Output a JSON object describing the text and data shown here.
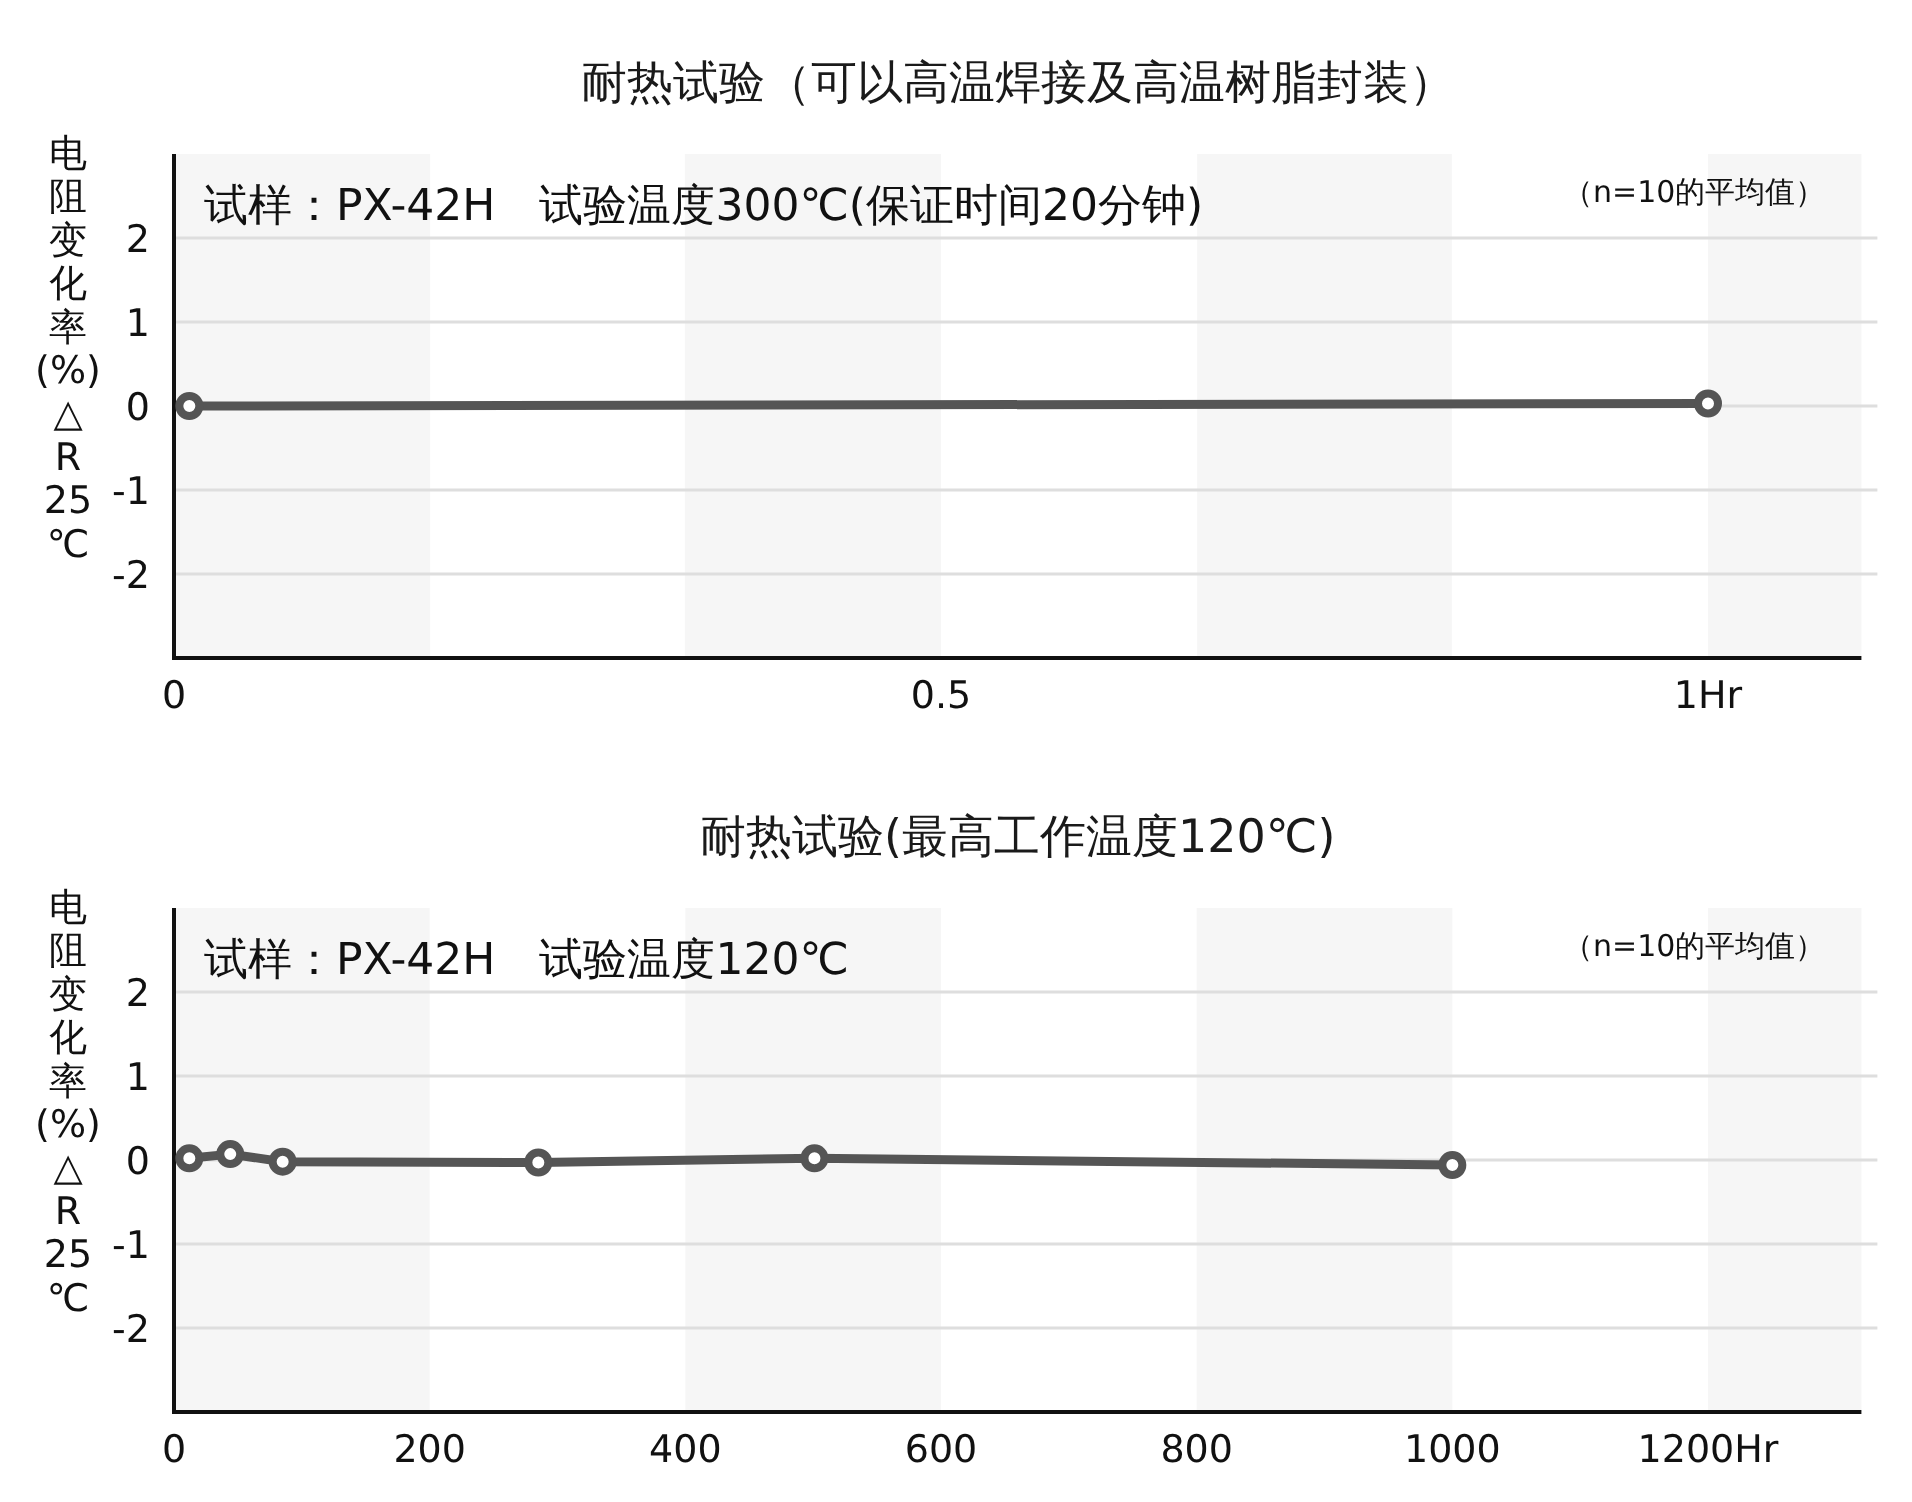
{
  "chart_data": [
    {
      "type": "line",
      "title": "耐热试验（可以高温焊接及高温树脂封装）",
      "ylabel": "电阻变化率(%)△R25℃",
      "annotations": [
        "试样：PX-42H　试验温度300℃(保证时间20分钟)",
        "（n=10的平均值）"
      ],
      "x": [
        0.01,
        1
      ],
      "values": [
        0,
        0.03
      ],
      "color": "#555555",
      "marker": "circle",
      "line_style": "solid",
      "xlim": [
        0,
        1.1
      ],
      "ylim": [
        -3,
        3
      ],
      "xticks": [
        0,
        0.5,
        {
          "value": 1,
          "label": "1Hr"
        }
      ],
      "yticks": [
        -2,
        -1,
        0,
        1,
        2
      ],
      "grid": "y",
      "bands": [
        {
          "axis": "x",
          "from": 0,
          "to": 0.167,
          "color": "#f6f6f6"
        },
        {
          "axis": "x",
          "from": 0.333,
          "to": 0.5,
          "color": "#f6f6f6"
        },
        {
          "axis": "x",
          "from": 0.667,
          "to": 0.833,
          "color": "#f6f6f6"
        },
        {
          "axis": "x",
          "from": 1,
          "to": 1.1,
          "color": "#f6f6f6"
        }
      ]
    },
    {
      "type": "line",
      "title": "耐热试验(最高工作温度120℃)",
      "ylabel": "电阻变化率(%)△R25℃",
      "annotations": [
        "试样：PX-42H　试验温度120℃",
        "（n=10的平均值）"
      ],
      "x": [
        12,
        44,
        85,
        285,
        501,
        1000
      ],
      "values": [
        0.02,
        0.07,
        -0.02,
        -0.03,
        0.02,
        -0.06
      ],
      "color": "#555555",
      "marker": "circle",
      "line_style": "solid",
      "xlim": [
        0,
        1320
      ],
      "ylim": [
        -3,
        3
      ],
      "xticks": [
        0,
        200,
        400,
        600,
        800,
        1000,
        {
          "value": 1200,
          "label": "1200Hr"
        }
      ],
      "yticks": [
        -2,
        -1,
        0,
        1,
        2
      ],
      "grid": "y",
      "bands": [
        {
          "axis": "x",
          "from": 0,
          "to": 200,
          "color": "#f6f6f6"
        },
        {
          "axis": "x",
          "from": 400,
          "to": 600,
          "color": "#f6f6f6"
        },
        {
          "axis": "x",
          "from": 800,
          "to": 1000,
          "color": "#f6f6f6"
        },
        {
          "axis": "x",
          "from": 1200,
          "to": 1320,
          "color": "#f6f6f6"
        }
      ]
    }
  ]
}
